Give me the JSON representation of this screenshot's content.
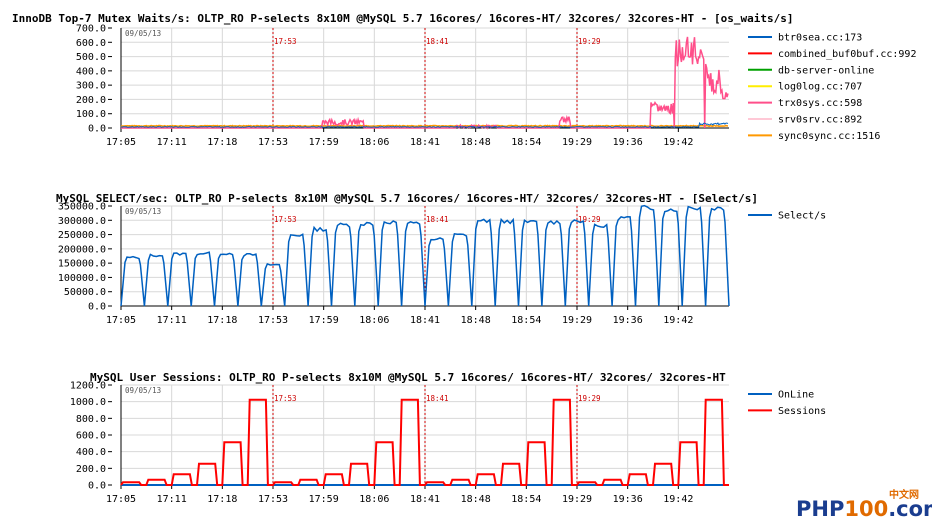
{
  "chart_data": [
    {
      "type": "line",
      "title": "InnoDB Top-7 Mutex Waits/s: OLTP_RO P-selects 8x10M @MySQL 5.7 16cores/ 16cores-HT/ 32cores/ 32cores-HT - [os_waits/s]",
      "date": "09/05/13",
      "ylim": [
        0,
        700
      ],
      "yticks": [
        "700.0",
        "600.0",
        "500.0",
        "400.0",
        "300.0",
        "200.0",
        "100.0",
        "0.0"
      ],
      "xticks": [
        "17:05",
        "17:11",
        "17:18",
        "17:53",
        "17:59",
        "18:06",
        "18:41",
        "18:48",
        "18:54",
        "19:29",
        "19:36",
        "19:42"
      ],
      "markers": [
        "17:53",
        "18:41",
        "19:29"
      ],
      "series": [
        {
          "name": "btr0sea.cc:173",
          "color": "#0060c0"
        },
        {
          "name": "combined_buf0buf.cc:992",
          "color": "#ff0000"
        },
        {
          "name": "db-server-online",
          "color": "#00a000"
        },
        {
          "name": "log0log.cc:707",
          "color": "#ffee00"
        },
        {
          "name": "trx0sys.cc:598",
          "color": "#ff4f8a"
        },
        {
          "name": "srv0srv.cc:892",
          "color": "#ffc8d6"
        },
        {
          "name": "sync0sync.cc:1516",
          "color": "#ff9900"
        }
      ]
    },
    {
      "type": "line",
      "title": "MySQL SELECT/sec: OLTP_RO P-selects 8x10M @MySQL 5.7 16cores/ 16cores-HT/ 32cores/ 32cores-HT - [Select/s]",
      "date": "09/05/13",
      "ylim": [
        0,
        350000
      ],
      "yticks": [
        "350000.0",
        "300000.0",
        "250000.0",
        "200000.0",
        "150000.0",
        "100000.0",
        "50000.0",
        "0.0"
      ],
      "xticks": [
        "17:05",
        "17:11",
        "17:18",
        "17:53",
        "17:59",
        "18:06",
        "18:41",
        "18:48",
        "18:54",
        "19:29",
        "19:36",
        "19:42"
      ],
      "markers": [
        "17:53",
        "18:41",
        "19:29"
      ],
      "series": [
        {
          "name": "Select/s",
          "color": "#0060c0",
          "plateaus": [
            170000,
            178000,
            183000,
            185000,
            185000,
            180000,
            145000,
            250000,
            270000,
            285000,
            290000,
            295000,
            290000,
            235000,
            250000,
            300000,
            298000,
            295000,
            295000,
            300000,
            280000,
            310000,
            345000,
            340000,
            345000,
            345000
          ]
        }
      ]
    },
    {
      "type": "line",
      "title": "MySQL User Sessions: OLTP_RO P-selects 8x10M @MySQL 5.7 16cores/ 16cores-HT/ 32cores/ 32cores-HT",
      "date": "09/05/13",
      "ylim": [
        0,
        1200
      ],
      "yticks": [
        "1200.0",
        "1000.0",
        "800.0",
        "600.0",
        "400.0",
        "200.0",
        "0.0"
      ],
      "xticks": [
        "17:05",
        "17:11",
        "17:18",
        "17:53",
        "17:59",
        "18:06",
        "18:41",
        "18:48",
        "18:54",
        "19:29",
        "19:36",
        "19:42"
      ],
      "markers": [
        "17:53",
        "18:41",
        "19:29"
      ],
      "series": [
        {
          "name": "OnLine",
          "color": "#0060c0"
        },
        {
          "name": "Sessions",
          "color": "#ff0000",
          "levels": [
            32,
            64,
            128,
            256,
            512,
            1024
          ]
        }
      ]
    }
  ],
  "watermark": {
    "text": "PHP100.com",
    "sub": "中文网"
  }
}
